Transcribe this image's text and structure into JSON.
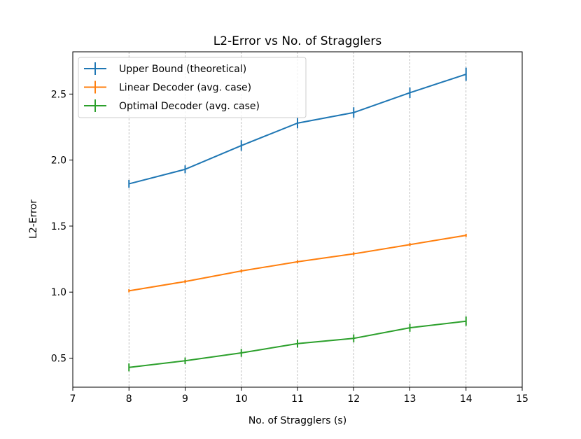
{
  "chart_data": {
    "type": "line",
    "title": "L2-Error vs No. of Stragglers",
    "xlabel": "No. of Stragglers (s)",
    "ylabel": "L2-Error",
    "xlim": [
      7,
      15
    ],
    "ylim": [
      0.28,
      2.82
    ],
    "xticks": [
      7,
      8,
      9,
      10,
      11,
      12,
      13,
      14,
      15
    ],
    "yticks": [
      0.5,
      1.0,
      1.5,
      2.0,
      2.5
    ],
    "ytick_labels": [
      "0.5",
      "1.0",
      "1.5",
      "2.0",
      "2.5"
    ],
    "grid": "vertical dashed",
    "legend_position": "top-left",
    "x": [
      8,
      9,
      10,
      11,
      12,
      13,
      14
    ],
    "series": [
      {
        "name": "Upper Bound (theoretical)",
        "color": "#1f77b4",
        "values": [
          1.82,
          1.93,
          2.11,
          2.28,
          2.36,
          2.51,
          2.65
        ],
        "errors": [
          0.03,
          0.03,
          0.04,
          0.04,
          0.04,
          0.04,
          0.05
        ]
      },
      {
        "name": "Linear Decoder (avg. case)",
        "color": "#ff7f0e",
        "values": [
          1.01,
          1.08,
          1.16,
          1.23,
          1.29,
          1.36,
          1.43
        ],
        "errors": [
          0.005,
          0.005,
          0.005,
          0.005,
          0.005,
          0.005,
          0.005
        ]
      },
      {
        "name": "Optimal Decoder (avg. case)",
        "color": "#2ca02c",
        "values": [
          0.43,
          0.48,
          0.54,
          0.61,
          0.65,
          0.73,
          0.78
        ],
        "errors": [
          0.03,
          0.025,
          0.03,
          0.03,
          0.03,
          0.03,
          0.035
        ]
      }
    ]
  }
}
